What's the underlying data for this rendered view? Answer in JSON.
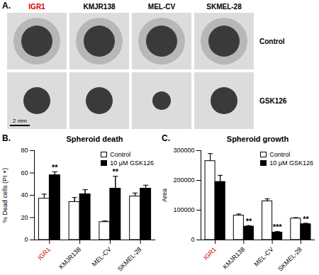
{
  "panel_a": {
    "label": "A.",
    "columns": [
      "IGR1",
      "KMJR138",
      "MEL-CV",
      "SKMEL-28"
    ],
    "rows": [
      "Control",
      "GSK126"
    ],
    "scale_bar": "2 mm"
  },
  "chart_data": [
    {
      "type": "bar",
      "panel_label": "B.",
      "title": "Spheroid death",
      "y_label": "% Dead cells (PI +)",
      "categories": [
        "IGR1",
        "KMJR138",
        "MEL-CV",
        "SKMEL-28"
      ],
      "series": [
        {
          "name": "Control",
          "color": "#ffffff",
          "values": [
            37,
            34,
            16,
            39
          ],
          "errors": [
            4,
            4,
            1,
            3
          ],
          "significance": [
            null,
            null,
            null,
            null
          ]
        },
        {
          "name": "10 μM GSK126",
          "color": "#000000",
          "values": [
            58,
            41,
            46,
            46
          ],
          "errors": [
            3,
            4,
            11,
            3
          ],
          "significance": [
            "**",
            null,
            "**",
            null
          ]
        }
      ],
      "ylim": [
        0,
        80
      ],
      "yticks": [
        0,
        20,
        40,
        60,
        80
      ],
      "legend": "top-right",
      "grid": false
    },
    {
      "type": "bar",
      "panel_label": "C.",
      "title": "Spheroid growth",
      "y_label": "Area",
      "categories": [
        "IGR1",
        "KMJR138",
        "MEL-CV",
        "SKMEL-28"
      ],
      "series": [
        {
          "name": "Control",
          "color": "#ffffff",
          "values": [
            265000,
            82000,
            130000,
            72000
          ],
          "errors": [
            25000,
            5000,
            8000,
            3000
          ],
          "significance": [
            null,
            null,
            null,
            null
          ]
        },
        {
          "name": "10 μM GSK126",
          "color": "#000000",
          "values": [
            195000,
            45000,
            25000,
            53000
          ],
          "errors": [
            22000,
            3000,
            3000,
            3000
          ],
          "significance": [
            null,
            "**",
            "***",
            "**"
          ]
        }
      ],
      "ylim": [
        0,
        300000
      ],
      "yticks": [
        0,
        100000,
        200000,
        300000
      ],
      "legend": "top-right",
      "grid": false
    }
  ]
}
